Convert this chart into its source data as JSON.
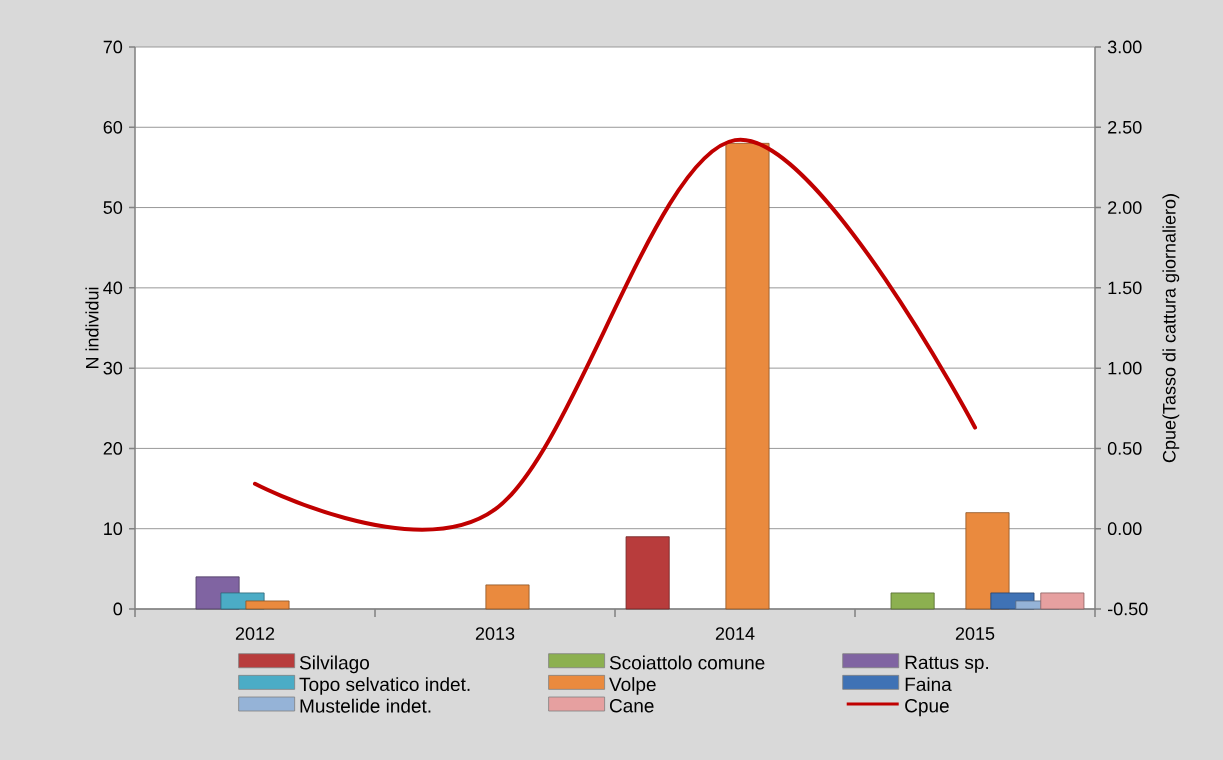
{
  "chart_data": {
    "type": "bar",
    "categories": [
      "2012",
      "2013",
      "2014",
      "2015"
    ],
    "ylabel": "N individui",
    "y2label": "Cpue(Tasso di cattura giornaliero)",
    "ylim": [
      0,
      70
    ],
    "yticks": [
      0,
      10,
      20,
      30,
      40,
      50,
      60,
      70
    ],
    "y2lim": [
      -0.5,
      3
    ],
    "y2ticks": [
      {
        "value": -0.5,
        "label": "-0.50"
      },
      {
        "value": 0,
        "label": "0.00"
      },
      {
        "value": 0.5,
        "label": "0.50"
      },
      {
        "value": 1,
        "label": "1.00"
      },
      {
        "value": 1.5,
        "label": "1.50"
      },
      {
        "value": 2,
        "label": "2.00"
      },
      {
        "value": 2.5,
        "label": "2.50"
      },
      {
        "value": 3,
        "label": "3.00"
      }
    ],
    "grid": "y",
    "legend": "bottom",
    "series": [
      {
        "name": "Silvilago",
        "color": "#b83c3c",
        "values": [
          null,
          null,
          9,
          null
        ]
      },
      {
        "name": "Scoiattolo comune",
        "color": "#8cb050",
        "values": [
          null,
          null,
          null,
          2
        ]
      },
      {
        "name": "Rattus sp.",
        "color": "#8064a2",
        "values": [
          4,
          null,
          null,
          null
        ]
      },
      {
        "name": "Topo selvatico indet.",
        "color": "#4bacc6",
        "values": [
          2,
          null,
          null,
          null
        ]
      },
      {
        "name": "Volpe",
        "color": "#ea8a3e",
        "values": [
          1,
          3,
          58,
          12
        ]
      },
      {
        "name": "Faina",
        "color": "#3f72b5",
        "values": [
          null,
          null,
          null,
          2
        ]
      },
      {
        "name": "Mustelide indet.",
        "color": "#95b3d7",
        "values": [
          null,
          null,
          null,
          1
        ]
      },
      {
        "name": "Cane",
        "color": "#e6a0a0",
        "values": [
          null,
          null,
          null,
          2
        ]
      },
      {
        "name": "Cpue",
        "type": "line",
        "axis": "y2",
        "color": "#c00000",
        "values": [
          0.28,
          0.12,
          2.42,
          0.63
        ]
      }
    ]
  }
}
